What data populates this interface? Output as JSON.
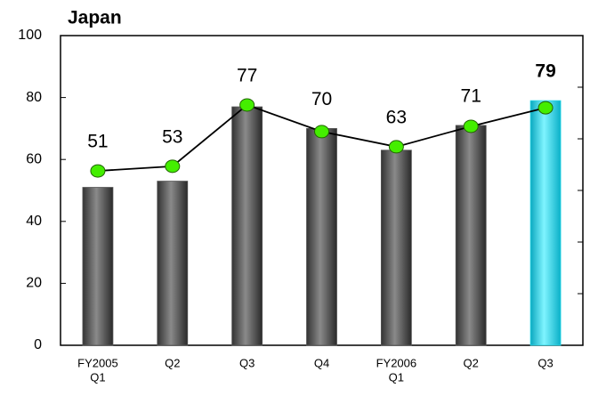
{
  "chart_data": {
    "type": "bar",
    "title": "Japan",
    "categories": [
      [
        "FY2005",
        "Q1"
      ],
      [
        "Q2"
      ],
      [
        "Q3"
      ],
      [
        "Q4"
      ],
      [
        "FY2006",
        "Q1"
      ],
      [
        "Q2"
      ],
      [
        "Q3"
      ]
    ],
    "series": [
      {
        "type": "bar",
        "colors": [
          "#555555",
          "#555555",
          "#555555",
          "#555555",
          "#555555",
          "#555555",
          "#22d8e8"
        ],
        "values": [
          51,
          53,
          77,
          70,
          63,
          71,
          79
        ],
        "highlight": [
          false,
          false,
          false,
          false,
          false,
          false,
          true
        ]
      },
      {
        "type": "line",
        "color": "#000000",
        "marker_color": "#44ee00",
        "values": [
          56.3,
          57.8,
          77.6,
          69,
          64.1,
          70.7,
          76.7
        ]
      }
    ],
    "ylim": [
      0,
      100
    ],
    "yticks": [
      0,
      20,
      40,
      60,
      80,
      100
    ],
    "grid": false
  }
}
